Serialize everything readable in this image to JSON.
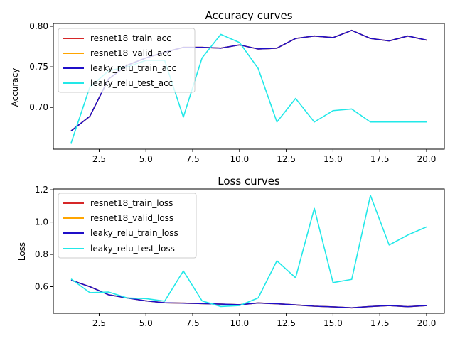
{
  "chart_data": [
    {
      "type": "line",
      "title": "Accuracy curves",
      "xlabel": "",
      "ylabel": "Accuracy",
      "xlim": [
        0.05,
        20.95
      ],
      "ylim": [
        0.6485,
        0.8035
      ],
      "xticks": [
        2.5,
        5.0,
        7.5,
        10.0,
        12.5,
        15.0,
        17.5,
        20.0
      ],
      "xtick_labels": [
        "2.5",
        "5.0",
        "7.5",
        "10.0",
        "12.5",
        "15.0",
        "17.5",
        "20.0"
      ],
      "yticks": [
        0.7,
        0.75,
        0.8
      ],
      "ytick_labels": [
        "0.70",
        "0.75",
        "0.80"
      ],
      "legend_position": "upper-left",
      "x": [
        1,
        2,
        3,
        4,
        5,
        6,
        7,
        8,
        9,
        10,
        11,
        12,
        13,
        14,
        15,
        16,
        17,
        18,
        19,
        20
      ],
      "series": [
        {
          "name": "resnet18_train_acc",
          "color": "#d62728",
          "values": [
            0.671,
            0.689,
            0.735,
            0.752,
            0.761,
            0.768,
            0.774,
            0.774,
            0.773,
            0.777,
            0.772,
            0.773,
            0.785,
            0.788,
            0.786,
            0.795,
            0.785,
            0.782,
            0.788,
            0.783
          ]
        },
        {
          "name": "resnet18_valid_acc",
          "color": "#ffa500",
          "values": [
            0.671,
            0.689,
            0.735,
            0.752,
            0.761,
            0.768,
            0.774,
            0.774,
            0.773,
            0.777,
            0.772,
            0.773,
            0.785,
            0.788,
            0.786,
            0.795,
            0.785,
            0.782,
            0.788,
            0.783
          ]
        },
        {
          "name": "leaky_relu_train_acc",
          "color": "#1f0ec8",
          "values": [
            0.671,
            0.689,
            0.735,
            0.752,
            0.761,
            0.768,
            0.774,
            0.774,
            0.773,
            0.777,
            0.772,
            0.773,
            0.785,
            0.788,
            0.786,
            0.795,
            0.785,
            0.782,
            0.788,
            0.783
          ]
        },
        {
          "name": "leaky_relu_test_acc",
          "color": "#22e8e8",
          "values": [
            0.656,
            0.725,
            0.745,
            0.75,
            0.758,
            0.758,
            0.688,
            0.761,
            0.79,
            0.78,
            0.748,
            0.682,
            0.711,
            0.682,
            0.696,
            0.698,
            0.682,
            0.682,
            0.682,
            0.682
          ]
        }
      ]
    },
    {
      "type": "line",
      "title": "Loss curves",
      "xlabel": "",
      "ylabel": "Loss",
      "xlim": [
        0.05,
        20.95
      ],
      "ylim": [
        0.435,
        1.205
      ],
      "xticks": [
        2.5,
        5.0,
        7.5,
        10.0,
        12.5,
        15.0,
        17.5,
        20.0
      ],
      "xtick_labels": [
        "2.5",
        "5.0",
        "7.5",
        "10.0",
        "12.5",
        "15.0",
        "17.5",
        "20.0"
      ],
      "yticks": [
        0.6,
        0.8,
        1.0,
        1.2
      ],
      "ytick_labels": [
        "0.6",
        "0.8",
        "1.0",
        "1.2"
      ],
      "legend_position": "upper-left",
      "x": [
        1,
        2,
        3,
        4,
        5,
        6,
        7,
        8,
        9,
        10,
        11,
        12,
        13,
        14,
        15,
        16,
        17,
        18,
        19,
        20
      ],
      "series": [
        {
          "name": "resnet18_train_loss",
          "color": "#d62728",
          "values": [
            0.64,
            0.6,
            0.55,
            0.53,
            0.512,
            0.5,
            0.498,
            0.495,
            0.492,
            0.488,
            0.499,
            0.494,
            0.487,
            0.479,
            0.475,
            0.469,
            0.477,
            0.483,
            0.476,
            0.483
          ]
        },
        {
          "name": "resnet18_valid_loss",
          "color": "#ffa500",
          "values": [
            0.64,
            0.6,
            0.55,
            0.53,
            0.512,
            0.5,
            0.498,
            0.495,
            0.492,
            0.488,
            0.499,
            0.494,
            0.487,
            0.479,
            0.475,
            0.469,
            0.477,
            0.483,
            0.476,
            0.483
          ]
        },
        {
          "name": "leaky_relu_train_loss",
          "color": "#1f0ec8",
          "values": [
            0.64,
            0.6,
            0.55,
            0.53,
            0.512,
            0.5,
            0.498,
            0.495,
            0.492,
            0.488,
            0.499,
            0.494,
            0.487,
            0.479,
            0.475,
            0.469,
            0.477,
            0.483,
            0.476,
            0.483
          ]
        },
        {
          "name": "leaky_relu_test_loss",
          "color": "#22e8e8",
          "values": [
            0.648,
            0.563,
            0.567,
            0.53,
            0.526,
            0.51,
            0.697,
            0.512,
            0.477,
            0.483,
            0.53,
            0.76,
            0.655,
            1.085,
            0.625,
            0.645,
            1.165,
            0.858,
            0.92,
            0.97
          ]
        }
      ]
    }
  ]
}
